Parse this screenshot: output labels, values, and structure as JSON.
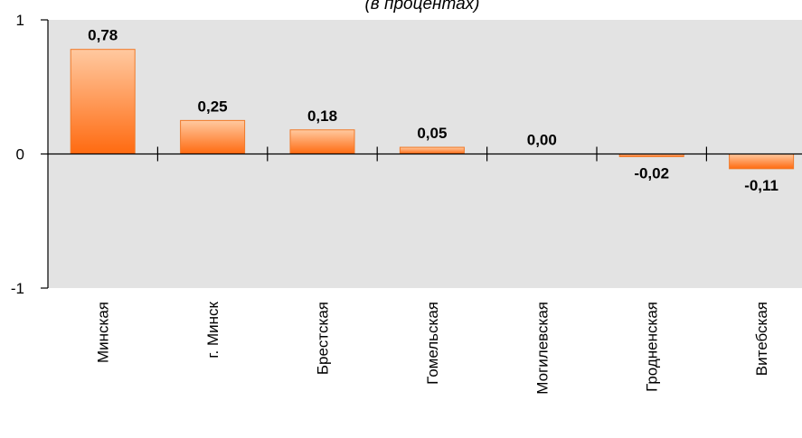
{
  "chart_data": {
    "type": "bar",
    "subtitle": "(в процентах)",
    "categories": [
      "Минская",
      "г. Минск",
      "Брестская",
      "Гомельская",
      "Могилевская",
      "Гродненская",
      "Витебская"
    ],
    "values": [
      0.78,
      0.25,
      0.18,
      0.05,
      0.0,
      -0.02,
      -0.11
    ],
    "value_labels": [
      "0,78",
      "0,25",
      "0,18",
      "0,05",
      "0,00",
      "-0,02",
      "-0,11"
    ],
    "ylim": [
      -1,
      1
    ],
    "yticks": [
      1,
      0,
      -1
    ],
    "ytick_labels": [
      "1",
      "0",
      "-1"
    ],
    "grid": false,
    "colors": {
      "plot_background": "#e3e3e3",
      "bar_top": "#ffc9a0",
      "bar_bottom": "#ff6a10",
      "bar_stroke": "#f07a2a"
    }
  }
}
